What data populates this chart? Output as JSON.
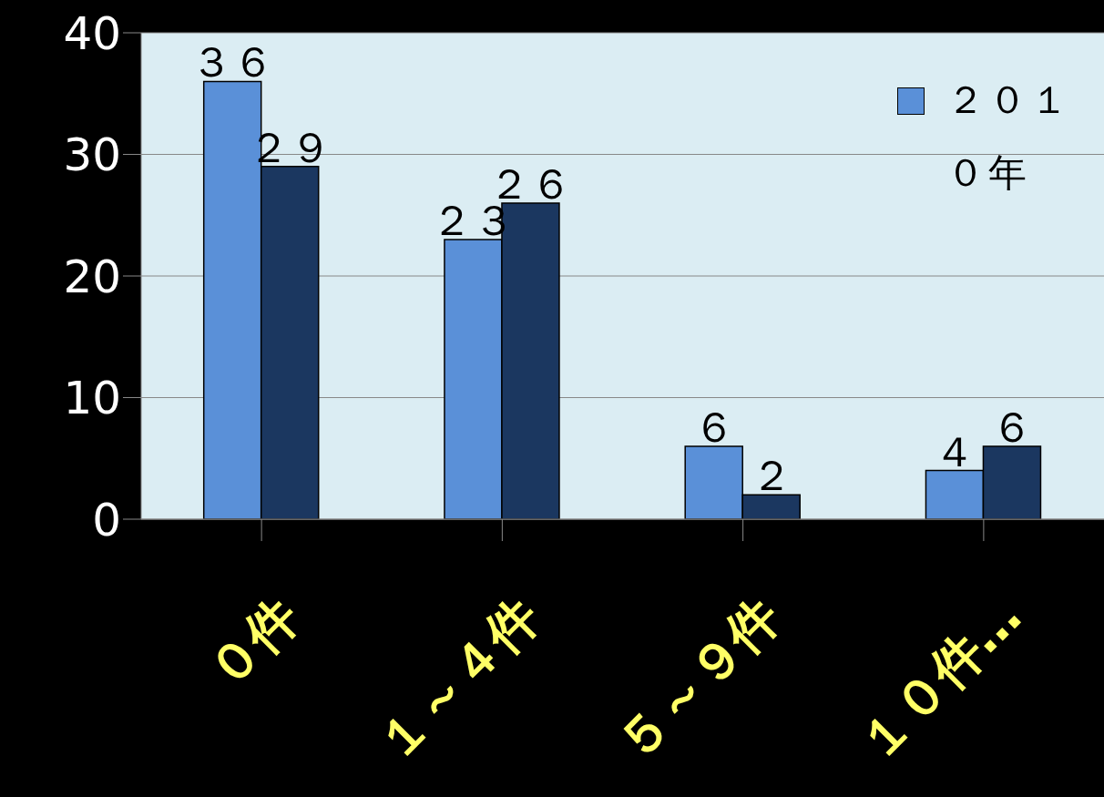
{
  "chart_data": {
    "type": "bar",
    "categories": [
      "０件",
      "１～４件",
      "５～９件",
      "１０件…"
    ],
    "series": [
      {
        "name": "２０１０年",
        "color": "#5a90d8",
        "values": [
          36,
          23,
          6,
          4
        ],
        "value_labels": [
          "３６",
          "２３",
          "６",
          "４"
        ]
      },
      {
        "color": "#1b3760",
        "values": [
          29,
          26,
          2,
          6
        ],
        "value_labels": [
          "２９",
          "２６",
          "２",
          "６"
        ]
      }
    ],
    "ylim": [
      0,
      40
    ],
    "yticks": [
      0,
      10,
      20,
      30,
      40
    ],
    "grid": "y",
    "legend": "top right"
  }
}
